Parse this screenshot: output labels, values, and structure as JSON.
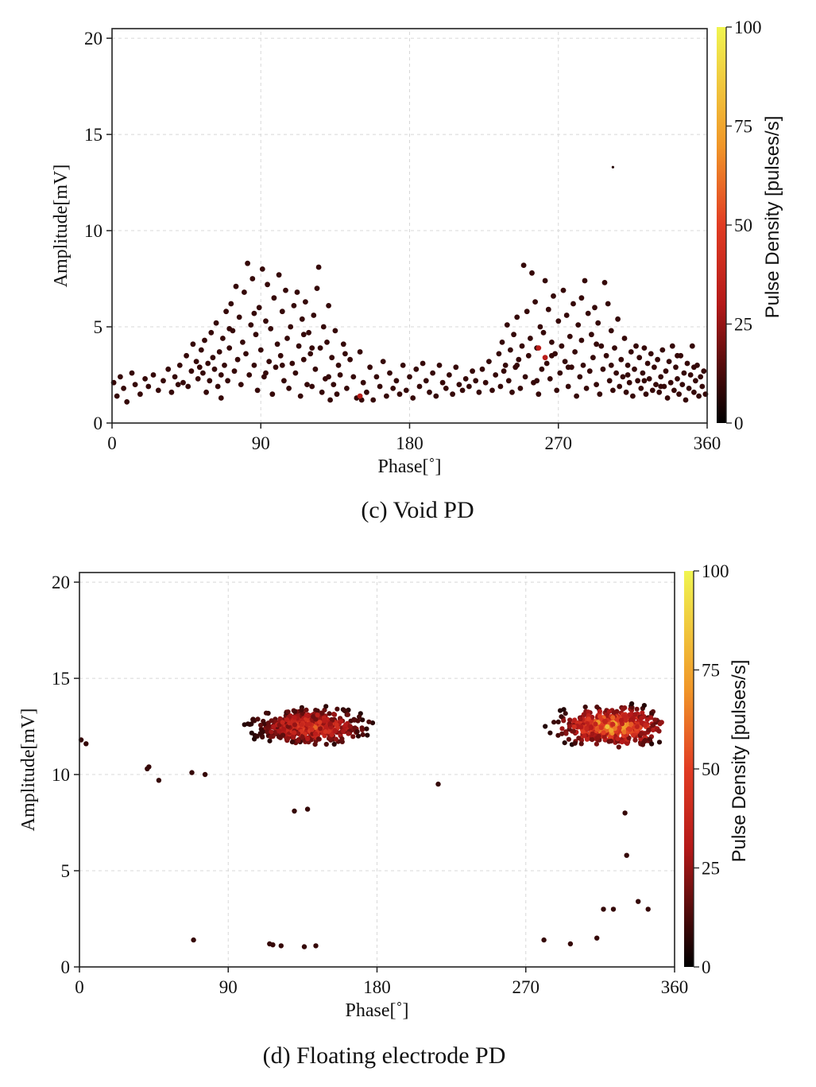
{
  "chart_data": [
    {
      "type": "scatter",
      "caption": "(c) Void PD",
      "xlabel": "Phase[˚]",
      "ylabel": "Amplitude[mV]",
      "xlim": [
        0,
        360
      ],
      "ylim": [
        0,
        20.5
      ],
      "xticks": [
        "0",
        "90",
        "180",
        "270",
        "360"
      ],
      "yticks": [
        "0",
        "5",
        "10",
        "15",
        "20"
      ],
      "grid": true,
      "colorbar": {
        "label": "Pulse Density [pulses/s]",
        "range": [
          0,
          100
        ],
        "ticks": [
          "0",
          "25",
          "50",
          "75",
          "100"
        ],
        "colormap": "black-red-orange-yellow"
      },
      "description_of_distribution": "two broad phase clusters around 90° and 270°, amplitudes mostly 1–8 mV, low pulse density",
      "points": [
        [
          1,
          2.1
        ],
        [
          3,
          1.4
        ],
        [
          5,
          2.4
        ],
        [
          7,
          1.8
        ],
        [
          9,
          1.1
        ],
        [
          12,
          2.6
        ],
        [
          14,
          2.0
        ],
        [
          17,
          1.5
        ],
        [
          20,
          2.3
        ],
        [
          22,
          1.9
        ],
        [
          25,
          2.5
        ],
        [
          28,
          1.7
        ],
        [
          31,
          2.2
        ],
        [
          34,
          2.8
        ],
        [
          36,
          1.6
        ],
        [
          38,
          2.4
        ],
        [
          41,
          3.0
        ],
        [
          43,
          2.1
        ],
        [
          45,
          3.5
        ],
        [
          46,
          1.9
        ],
        [
          48,
          2.7
        ],
        [
          49,
          4.1
        ],
        [
          51,
          3.2
        ],
        [
          52,
          2.3
        ],
        [
          54,
          3.8
        ],
        [
          55,
          2.6
        ],
        [
          56,
          4.3
        ],
        [
          57,
          1.6
        ],
        [
          58,
          3.1
        ],
        [
          59,
          2.2
        ],
        [
          60,
          4.7
        ],
        [
          61,
          3.4
        ],
        [
          62,
          2.8
        ],
        [
          63,
          5.2
        ],
        [
          64,
          1.9
        ],
        [
          65,
          3.7
        ],
        [
          66,
          2.5
        ],
        [
          67,
          4.4
        ],
        [
          68,
          3.0
        ],
        [
          69,
          5.8
        ],
        [
          70,
          2.2
        ],
        [
          71,
          3.9
        ],
        [
          72,
          6.2
        ],
        [
          73,
          4.8
        ],
        [
          74,
          2.7
        ],
        [
          75,
          7.1
        ],
        [
          76,
          3.3
        ],
        [
          77,
          5.5
        ],
        [
          78,
          2.0
        ],
        [
          79,
          4.2
        ],
        [
          80,
          6.8
        ],
        [
          81,
          3.6
        ],
        [
          82,
          8.3
        ],
        [
          83,
          2.5
        ],
        [
          84,
          5.1
        ],
        [
          85,
          7.5
        ],
        [
          86,
          3.0
        ],
        [
          87,
          4.6
        ],
        [
          88,
          1.7
        ],
        [
          89,
          6.0
        ],
        [
          90,
          3.8
        ],
        [
          91,
          8.0
        ],
        [
          92,
          2.4
        ],
        [
          93,
          5.3
        ],
        [
          94,
          7.2
        ],
        [
          95,
          3.2
        ],
        [
          96,
          4.9
        ],
        [
          97,
          1.5
        ],
        [
          98,
          6.5
        ],
        [
          99,
          2.9
        ],
        [
          100,
          4.1
        ],
        [
          101,
          7.7
        ],
        [
          102,
          3.5
        ],
        [
          103,
          5.8
        ],
        [
          104,
          2.2
        ],
        [
          105,
          6.9
        ],
        [
          106,
          4.4
        ],
        [
          107,
          1.8
        ],
        [
          108,
          5.0
        ],
        [
          109,
          3.1
        ],
        [
          110,
          6.1
        ],
        [
          111,
          2.6
        ],
        [
          112,
          6.8
        ],
        [
          113,
          4.0
        ],
        [
          114,
          1.4
        ],
        [
          115,
          5.4
        ],
        [
          116,
          3.3
        ],
        [
          117,
          6.3
        ],
        [
          118,
          2.0
        ],
        [
          119,
          4.7
        ],
        [
          120,
          3.6
        ],
        [
          121,
          1.9
        ],
        [
          122,
          5.6
        ],
        [
          123,
          2.8
        ],
        [
          124,
          7.0
        ],
        [
          125,
          8.1
        ],
        [
          126,
          3.9
        ],
        [
          127,
          1.6
        ],
        [
          128,
          5.0
        ],
        [
          129,
          2.3
        ],
        [
          130,
          4.2
        ],
        [
          131,
          6.1
        ],
        [
          132,
          1.2
        ],
        [
          133,
          3.4
        ],
        [
          134,
          2.0
        ],
        [
          135,
          4.8
        ],
        [
          136,
          1.5
        ],
        [
          137,
          3.0
        ],
        [
          138,
          2.5
        ],
        [
          140,
          4.1
        ],
        [
          142,
          1.8
        ],
        [
          144,
          3.3
        ],
        [
          146,
          2.4
        ],
        [
          148,
          1.3
        ],
        [
          150,
          3.7
        ],
        [
          152,
          2.1
        ],
        [
          154,
          1.6
        ],
        [
          156,
          2.9
        ],
        [
          158,
          1.2
        ],
        [
          160,
          2.4
        ],
        [
          162,
          1.9
        ],
        [
          164,
          3.2
        ],
        [
          166,
          1.4
        ],
        [
          168,
          2.6
        ],
        [
          170,
          1.8
        ],
        [
          172,
          2.2
        ],
        [
          174,
          1.5
        ],
        [
          176,
          3.0
        ],
        [
          178,
          1.7
        ],
        [
          180,
          2.4
        ],
        [
          182,
          1.3
        ],
        [
          184,
          2.8
        ],
        [
          186,
          1.9
        ],
        [
          188,
          3.1
        ],
        [
          190,
          2.2
        ],
        [
          192,
          1.6
        ],
        [
          194,
          2.6
        ],
        [
          196,
          1.4
        ],
        [
          198,
          3.0
        ],
        [
          200,
          2.1
        ],
        [
          202,
          1.8
        ],
        [
          204,
          2.5
        ],
        [
          206,
          1.5
        ],
        [
          208,
          2.9
        ],
        [
          210,
          2.0
        ],
        [
          212,
          1.7
        ],
        [
          214,
          2.3
        ],
        [
          216,
          1.9
        ],
        [
          218,
          2.7
        ],
        [
          220,
          2.2
        ],
        [
          222,
          1.6
        ],
        [
          224,
          2.8
        ],
        [
          226,
          2.1
        ],
        [
          228,
          3.2
        ],
        [
          230,
          1.7
        ],
        [
          232,
          2.5
        ],
        [
          234,
          3.6
        ],
        [
          235,
          1.9
        ],
        [
          236,
          4.2
        ],
        [
          237,
          2.7
        ],
        [
          238,
          3.0
        ],
        [
          239,
          5.1
        ],
        [
          240,
          2.2
        ],
        [
          241,
          3.8
        ],
        [
          242,
          1.6
        ],
        [
          243,
          4.6
        ],
        [
          244,
          2.9
        ],
        [
          245,
          5.5
        ],
        [
          246,
          3.3
        ],
        [
          247,
          1.8
        ],
        [
          248,
          4.0
        ],
        [
          249,
          8.2
        ],
        [
          250,
          2.4
        ],
        [
          251,
          5.8
        ],
        [
          252,
          3.5
        ],
        [
          253,
          4.4
        ],
        [
          254,
          7.8
        ],
        [
          255,
          2.1
        ],
        [
          256,
          6.3
        ],
        [
          257,
          3.9
        ],
        [
          258,
          1.5
        ],
        [
          259,
          5.0
        ],
        [
          260,
          2.8
        ],
        [
          261,
          4.7
        ],
        [
          262,
          7.4
        ],
        [
          263,
          3.1
        ],
        [
          264,
          5.9
        ],
        [
          265,
          2.3
        ],
        [
          266,
          4.2
        ],
        [
          267,
          6.6
        ],
        [
          268,
          3.6
        ],
        [
          269,
          1.7
        ],
        [
          270,
          5.3
        ],
        [
          271,
          2.6
        ],
        [
          272,
          4.0
        ],
        [
          273,
          6.9
        ],
        [
          274,
          3.2
        ],
        [
          275,
          5.6
        ],
        [
          276,
          1.9
        ],
        [
          277,
          4.5
        ],
        [
          278,
          2.9
        ],
        [
          279,
          6.2
        ],
        [
          280,
          3.7
        ],
        [
          281,
          1.4
        ],
        [
          282,
          5.1
        ],
        [
          283,
          2.4
        ],
        [
          284,
          4.3
        ],
        [
          285,
          3.0
        ],
        [
          286,
          7.4
        ],
        [
          287,
          1.8
        ],
        [
          288,
          5.7
        ],
        [
          289,
          2.7
        ],
        [
          290,
          4.6
        ],
        [
          291,
          3.4
        ],
        [
          292,
          6.0
        ],
        [
          293,
          2.0
        ],
        [
          294,
          5.2
        ],
        [
          295,
          1.5
        ],
        [
          296,
          4.0
        ],
        [
          297,
          2.8
        ],
        [
          298,
          7.3
        ],
        [
          299,
          3.5
        ],
        [
          300,
          6.2
        ],
        [
          301,
          2.2
        ],
        [
          302,
          4.8
        ],
        [
          303,
          1.7
        ],
        [
          304,
          3.9
        ],
        [
          305,
          2.6
        ],
        [
          306,
          5.4
        ],
        [
          307,
          1.9
        ],
        [
          308,
          3.3
        ],
        [
          309,
          2.4
        ],
        [
          310,
          4.4
        ],
        [
          311,
          1.6
        ],
        [
          312,
          3.0
        ],
        [
          313,
          2.1
        ],
        [
          314,
          3.7
        ],
        [
          315,
          1.4
        ],
        [
          316,
          2.8
        ],
        [
          317,
          4.0
        ],
        [
          318,
          2.2
        ],
        [
          319,
          3.4
        ],
        [
          320,
          1.8
        ],
        [
          321,
          2.6
        ],
        [
          322,
          3.9
        ],
        [
          323,
          1.5
        ],
        [
          324,
          3.1
        ],
        [
          325,
          2.3
        ],
        [
          326,
          3.6
        ],
        [
          327,
          1.7
        ],
        [
          328,
          2.9
        ],
        [
          329,
          2.0
        ],
        [
          330,
          3.3
        ],
        [
          331,
          1.6
        ],
        [
          332,
          2.4
        ],
        [
          333,
          3.8
        ],
        [
          334,
          1.9
        ],
        [
          335,
          2.7
        ],
        [
          336,
          1.3
        ],
        [
          337,
          3.2
        ],
        [
          338,
          2.1
        ],
        [
          339,
          4.0
        ],
        [
          340,
          1.7
        ],
        [
          341,
          2.9
        ],
        [
          342,
          2.3
        ],
        [
          343,
          1.5
        ],
        [
          344,
          3.5
        ],
        [
          345,
          2.0
        ],
        [
          346,
          2.6
        ],
        [
          347,
          1.2
        ],
        [
          348,
          3.1
        ],
        [
          349,
          1.8
        ],
        [
          350,
          2.5
        ],
        [
          351,
          4.0
        ],
        [
          352,
          1.6
        ],
        [
          353,
          2.2
        ],
        [
          354,
          3.0
        ],
        [
          355,
          1.4
        ],
        [
          356,
          2.4
        ],
        [
          357,
          1.9
        ],
        [
          358,
          2.7
        ],
        [
          359,
          1.5
        ],
        [
          40,
          2.0
        ],
        [
          53,
          2.9
        ],
        [
          66,
          1.3
        ],
        [
          71,
          4.9
        ],
        [
          86,
          5.7
        ],
        [
          93,
          2.6
        ],
        [
          103,
          3.0
        ],
        [
          116,
          4.6
        ],
        [
          121,
          3.9
        ],
        [
          131,
          2.4
        ],
        [
          141,
          3.6
        ],
        [
          151,
          1.2
        ],
        [
          245,
          3.0
        ],
        [
          257,
          2.2
        ],
        [
          266,
          3.5
        ],
        [
          276,
          2.9
        ],
        [
          284,
          6.5
        ],
        [
          293,
          4.1
        ],
        [
          302,
          3.0
        ],
        [
          312,
          2.5
        ],
        [
          322,
          2.2
        ],
        [
          332,
          1.9
        ],
        [
          342,
          3.5
        ],
        [
          352,
          2.9
        ]
      ],
      "hot_points": [
        [
          150,
          1.4
        ],
        [
          258,
          3.9
        ],
        [
          262,
          3.4
        ]
      ],
      "outliers": [
        [
          303,
          13.3
        ]
      ]
    },
    {
      "type": "scatter",
      "caption": "(d) Floating electrode PD",
      "xlabel": "Phase[˚]",
      "ylabel": "Amplitude[mV]",
      "xlim": [
        0,
        360
      ],
      "ylim": [
        0,
        20.5
      ],
      "xticks": [
        "0",
        "90",
        "180",
        "270",
        "360"
      ],
      "yticks": [
        "0",
        "5",
        "10",
        "15",
        "20"
      ],
      "grid": true,
      "colorbar": {
        "label": "Pulse Density [pulses/s]",
        "range": [
          0,
          100
        ],
        "ticks": [
          "0",
          "25",
          "50",
          "75",
          "100"
        ],
        "colormap": "black-red-orange-yellow"
      },
      "description_of_distribution": "two dense clusters near 12.5 mV at 100–190° and 270–355°, plus sparse isolated pulses",
      "clusters": [
        {
          "x_range": [
            98,
            188
          ],
          "y_range": [
            11.5,
            14.0
          ],
          "center": [
            140,
            12.5
          ],
          "peak_density": 55
        },
        {
          "x_range": [
            270,
            355
          ],
          "y_range": [
            11.4,
            14.1
          ],
          "center": [
            322,
            12.5
          ],
          "peak_density": 80
        }
      ],
      "isolated_points": [
        [
          1,
          11.8
        ],
        [
          4,
          11.6
        ],
        [
          41,
          10.3
        ],
        [
          42,
          10.4
        ],
        [
          48,
          9.7
        ],
        [
          68,
          10.1
        ],
        [
          76,
          10.0
        ],
        [
          69,
          1.4
        ],
        [
          115,
          1.2
        ],
        [
          122,
          1.1
        ],
        [
          117,
          1.15
        ],
        [
          130,
          8.1
        ],
        [
          138,
          8.2
        ],
        [
          136,
          1.05
        ],
        [
          143,
          1.1
        ],
        [
          217,
          9.5
        ],
        [
          281,
          1.4
        ],
        [
          297,
          1.2
        ],
        [
          313,
          1.5
        ],
        [
          317,
          3.0
        ],
        [
          323,
          3.0
        ],
        [
          330,
          8.0
        ],
        [
          331,
          5.8
        ],
        [
          338,
          3.4
        ],
        [
          344,
          3.0
        ]
      ]
    }
  ]
}
